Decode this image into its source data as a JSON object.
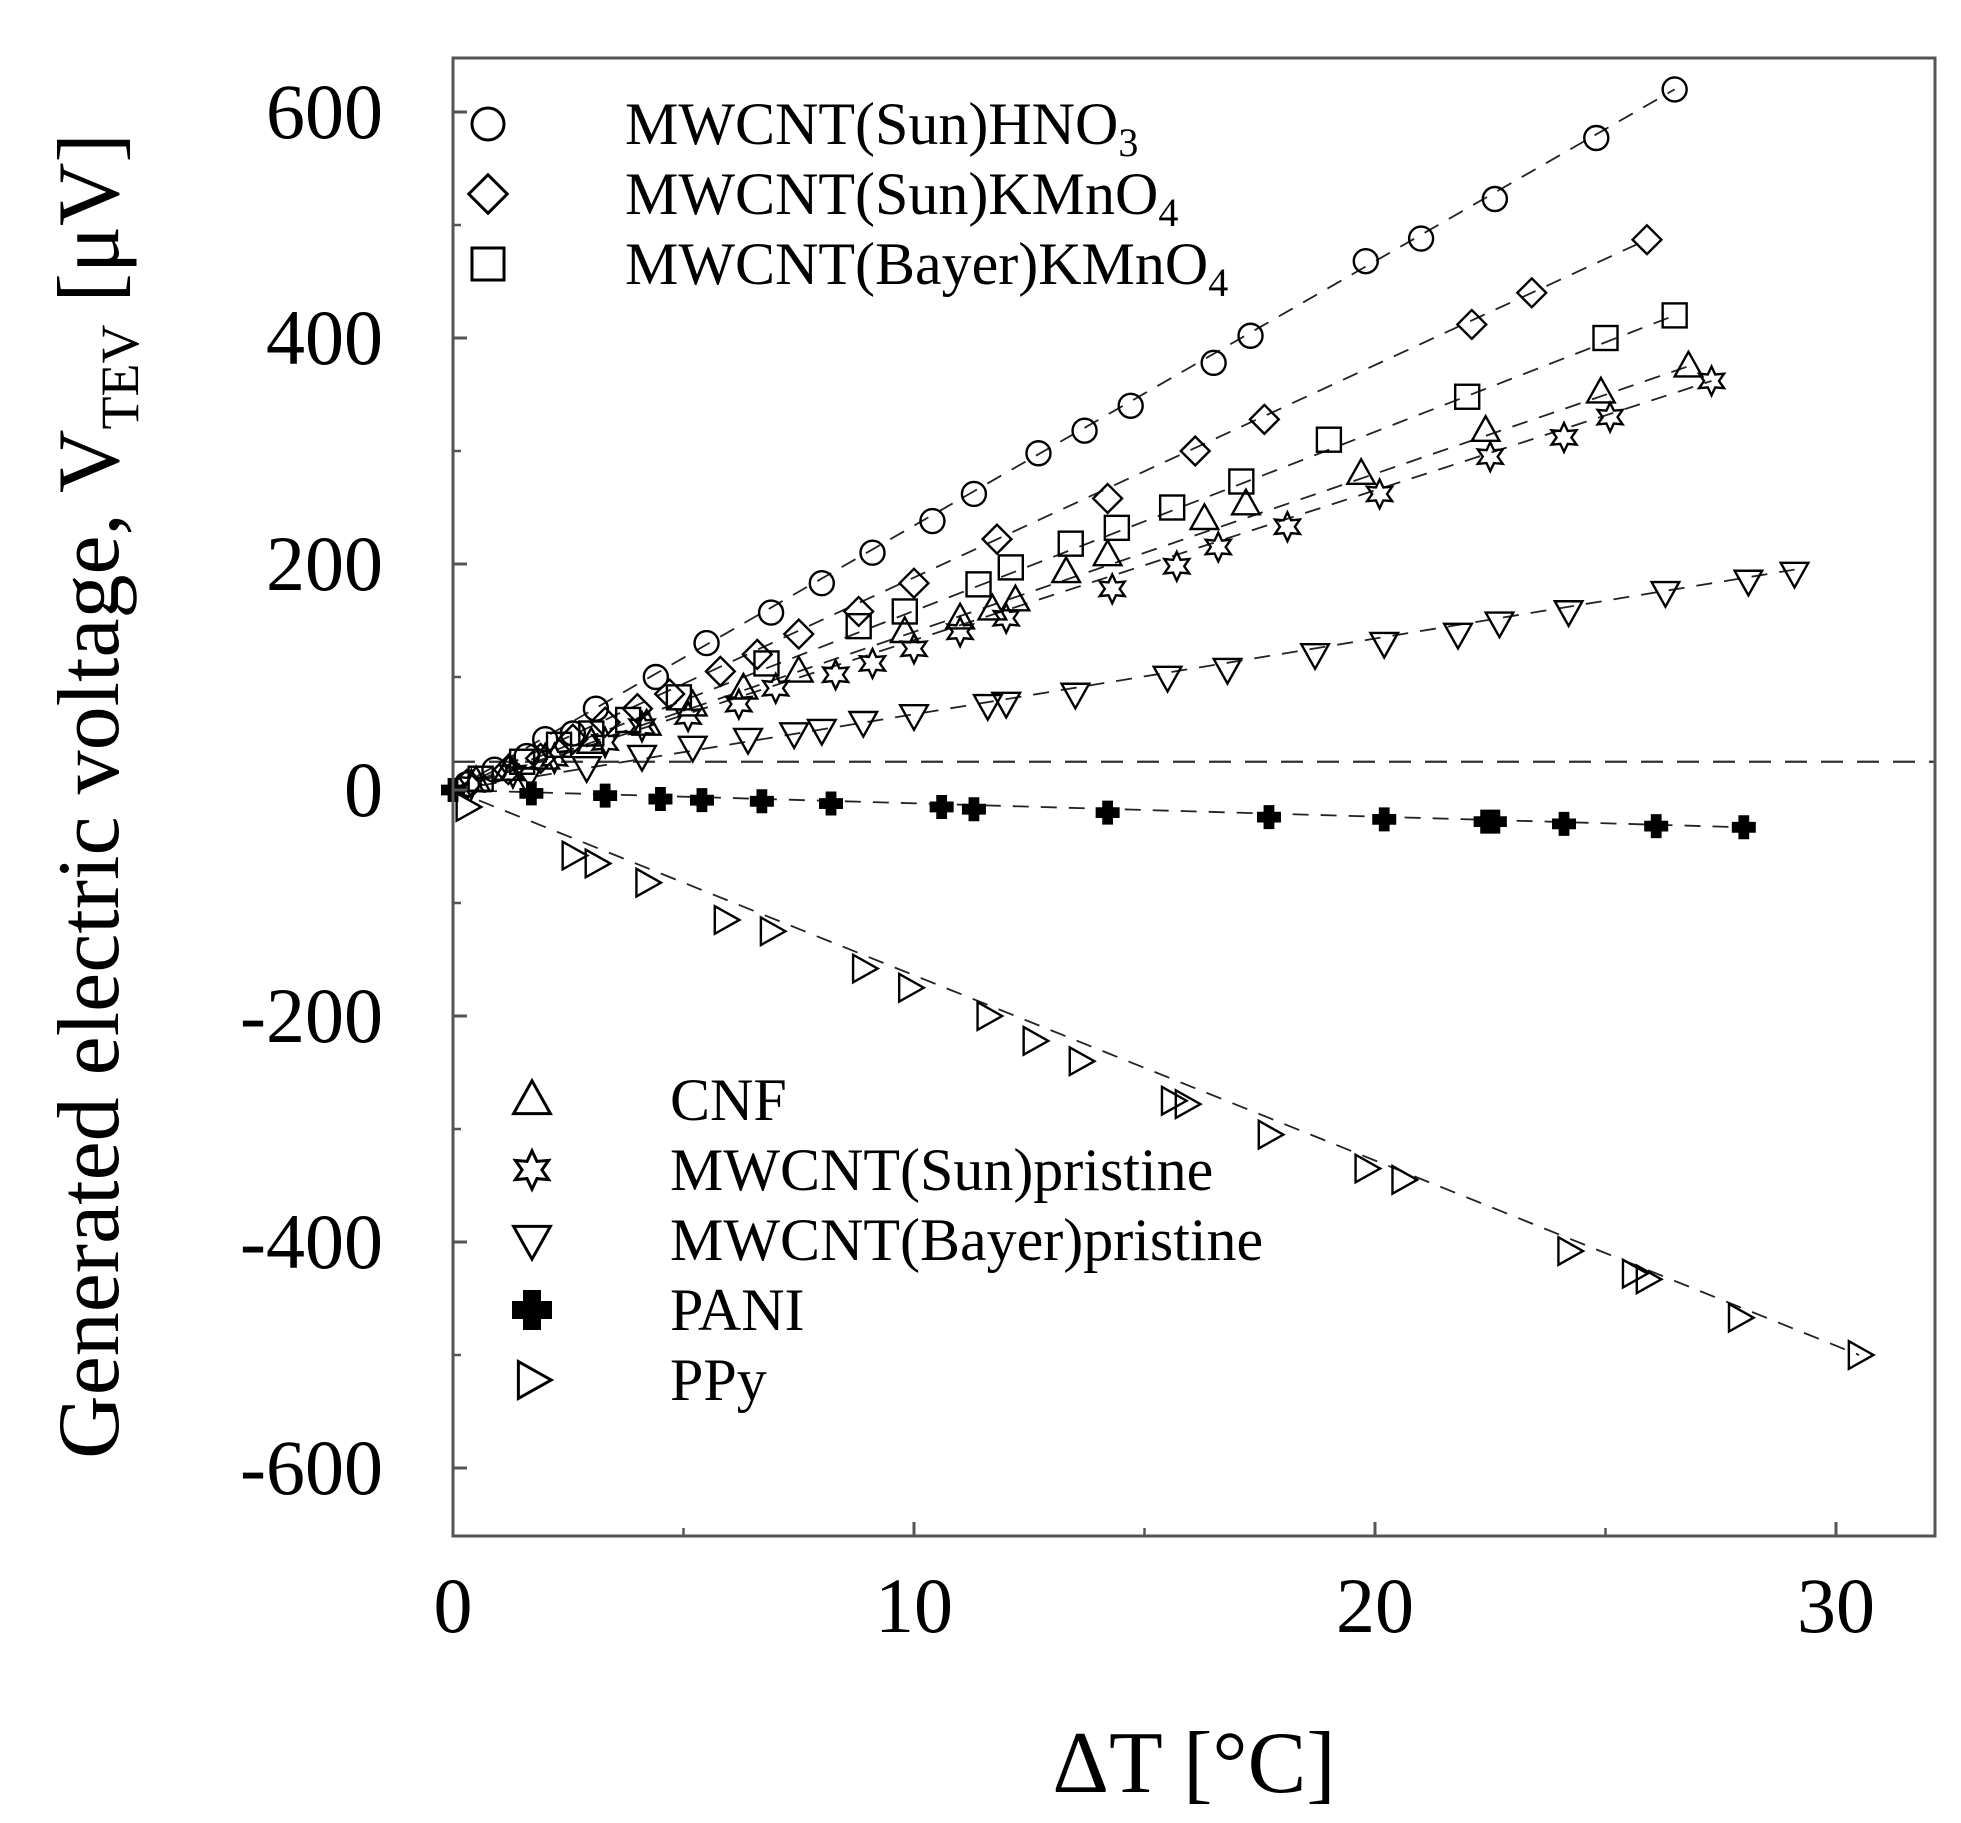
{
  "chart_data": {
    "type": "scatter",
    "xlabel": "ΔT [°C]",
    "ylabel": "Generated electric voltage, V",
    "ylabel_sub": "TEV",
    "ylabel_unit": " [μV]",
    "xlim": [
      0,
      32
    ],
    "ylim": [
      -650,
      640
    ],
    "xticks": [
      0,
      10,
      20,
      30
    ],
    "yticks": [
      600,
      400,
      200,
      0,
      -200,
      -400,
      -600
    ],
    "grid": false,
    "legend": [
      {
        "placement": "top-left",
        "entries": [
          0,
          1,
          2
        ]
      },
      {
        "placement": "bottom-left",
        "entries": [
          3,
          4,
          5,
          6,
          7
        ]
      }
    ],
    "reference_line": {
      "y": 25,
      "style": "dashed"
    },
    "series": [
      {
        "name": "MWCNT(Sun)HNO",
        "name_sub": "3",
        "marker": "circle",
        "fit": {
          "x0": 0,
          "y0": 0,
          "x1": 26.5,
          "y1": 620
        },
        "points": [
          [
            0.3,
            5
          ],
          [
            0.9,
            18
          ],
          [
            1.6,
            30
          ],
          [
            2.0,
            45
          ],
          [
            2.6,
            50
          ],
          [
            3.1,
            72
          ],
          [
            4.4,
            100
          ],
          [
            5.5,
            130
          ],
          [
            6.9,
            157
          ],
          [
            8.0,
            183
          ],
          [
            9.1,
            210
          ],
          [
            10.4,
            238
          ],
          [
            11.3,
            262
          ],
          [
            12.7,
            298
          ],
          [
            13.7,
            318
          ],
          [
            14.7,
            340
          ],
          [
            16.5,
            378
          ],
          [
            17.3,
            402
          ],
          [
            19.8,
            468
          ],
          [
            21.0,
            488
          ],
          [
            22.6,
            523
          ],
          [
            24.8,
            577
          ],
          [
            26.5,
            620
          ]
        ]
      },
      {
        "name": "MWCNT(Sun)KMnO",
        "name_sub": "4",
        "marker": "diamond",
        "fit": {
          "x0": 0,
          "y0": 0,
          "x1": 25.9,
          "y1": 487
        },
        "points": [
          [
            0.3,
            5
          ],
          [
            1.2,
            18
          ],
          [
            1.9,
            28
          ],
          [
            2.6,
            45
          ],
          [
            3.3,
            60
          ],
          [
            4.0,
            72
          ],
          [
            4.7,
            85
          ],
          [
            5.8,
            105
          ],
          [
            6.6,
            120
          ],
          [
            7.5,
            138
          ],
          [
            8.8,
            158
          ],
          [
            10.0,
            183
          ],
          [
            11.8,
            222
          ],
          [
            14.2,
            258
          ],
          [
            16.1,
            300
          ],
          [
            17.6,
            328
          ],
          [
            22.1,
            412
          ],
          [
            23.4,
            440
          ],
          [
            25.9,
            487
          ]
        ]
      },
      {
        "name": "MWCNT(Bayer)KMnO",
        "name_sub": "4",
        "marker": "square",
        "fit": {
          "x0": 0,
          "y0": 0,
          "x1": 26.5,
          "y1": 420
        },
        "points": [
          [
            0.6,
            10
          ],
          [
            1.5,
            25
          ],
          [
            2.3,
            40
          ],
          [
            3.0,
            50
          ],
          [
            3.8,
            62
          ],
          [
            4.9,
            82
          ],
          [
            6.8,
            112
          ],
          [
            8.8,
            145
          ],
          [
            9.8,
            158
          ],
          [
            11.4,
            182
          ],
          [
            12.1,
            197
          ],
          [
            13.4,
            218
          ],
          [
            14.4,
            232
          ],
          [
            15.6,
            250
          ],
          [
            17.1,
            273
          ],
          [
            19.0,
            310
          ],
          [
            22.0,
            348
          ],
          [
            25.0,
            400
          ],
          [
            26.5,
            420
          ]
        ]
      },
      {
        "name": "CNF",
        "marker": "triangle-up",
        "fit": {
          "x0": 0,
          "y0": 0,
          "x1": 26.8,
          "y1": 375
        },
        "points": [
          [
            0.5,
            8
          ],
          [
            1.2,
            18
          ],
          [
            2.0,
            28
          ],
          [
            3.0,
            42
          ],
          [
            4.2,
            58
          ],
          [
            5.2,
            75
          ],
          [
            6.3,
            90
          ],
          [
            7.5,
            105
          ],
          [
            9.8,
            140
          ],
          [
            11.0,
            152
          ],
          [
            11.7,
            160
          ],
          [
            12.2,
            168
          ],
          [
            13.3,
            193
          ],
          [
            14.2,
            208
          ],
          [
            16.3,
            240
          ],
          [
            17.2,
            253
          ],
          [
            19.7,
            280
          ],
          [
            22.4,
            318
          ],
          [
            24.9,
            352
          ],
          [
            26.8,
            375
          ]
        ]
      },
      {
        "name": "MWCNT(Sun)pristine",
        "marker": "star6",
        "fit": {
          "x0": 0,
          "y0": 0,
          "x1": 27.3,
          "y1": 362
        },
        "points": [
          [
            0.4,
            5
          ],
          [
            1.3,
            15
          ],
          [
            2.2,
            28
          ],
          [
            3.3,
            42
          ],
          [
            4.1,
            56
          ],
          [
            5.1,
            65
          ],
          [
            6.2,
            76
          ],
          [
            7.0,
            90
          ],
          [
            8.3,
            102
          ],
          [
            9.1,
            112
          ],
          [
            10.0,
            125
          ],
          [
            11.0,
            140
          ],
          [
            12.0,
            152
          ],
          [
            14.3,
            178
          ],
          [
            15.7,
            198
          ],
          [
            16.6,
            215
          ],
          [
            18.1,
            233
          ],
          [
            20.1,
            262
          ],
          [
            22.5,
            295
          ],
          [
            24.1,
            312
          ],
          [
            25.1,
            330
          ],
          [
            27.3,
            362
          ]
        ]
      },
      {
        "name": "MWCNT(Bayer)pristine",
        "marker": "triangle-down",
        "fit": {
          "x0": 0,
          "y0": 0,
          "x1": 29.1,
          "y1": 195
        },
        "points": [
          [
            1.6,
            10
          ],
          [
            2.9,
            20
          ],
          [
            4.1,
            30
          ],
          [
            5.2,
            38
          ],
          [
            6.4,
            45
          ],
          [
            7.4,
            50
          ],
          [
            8.0,
            53
          ],
          [
            8.9,
            60
          ],
          [
            10.0,
            66
          ],
          [
            11.6,
            75
          ],
          [
            12.0,
            77
          ],
          [
            13.5,
            85
          ],
          [
            15.5,
            100
          ],
          [
            16.8,
            107
          ],
          [
            18.7,
            120
          ],
          [
            20.2,
            130
          ],
          [
            21.8,
            138
          ],
          [
            22.7,
            148
          ],
          [
            24.2,
            158
          ],
          [
            26.3,
            175
          ],
          [
            28.1,
            185
          ],
          [
            29.1,
            192
          ]
        ]
      },
      {
        "name": "PANI",
        "marker": "plus",
        "fit": {
          "x0": 0,
          "y0": 0,
          "x1": 28.0,
          "y1": -33
        },
        "points": [
          [
            0.0,
            0
          ],
          [
            1.7,
            -3
          ],
          [
            3.3,
            -5
          ],
          [
            4.5,
            -8
          ],
          [
            5.4,
            -9
          ],
          [
            6.7,
            -10
          ],
          [
            8.2,
            -12
          ],
          [
            10.6,
            -15
          ],
          [
            11.3,
            -17
          ],
          [
            14.2,
            -20
          ],
          [
            17.7,
            -24
          ],
          [
            20.2,
            -26
          ],
          [
            22.4,
            -28
          ],
          [
            22.6,
            -28
          ],
          [
            24.1,
            -30
          ],
          [
            26.1,
            -32
          ],
          [
            28.0,
            -33
          ]
        ]
      },
      {
        "name": "PPy",
        "marker": "triangle-right",
        "fit": {
          "x0": 0,
          "y0": 0,
          "x1": 30.5,
          "y1": -500
        },
        "points": [
          [
            0.3,
            -15
          ],
          [
            2.6,
            -58
          ],
          [
            3.1,
            -65
          ],
          [
            4.2,
            -82
          ],
          [
            5.9,
            -115
          ],
          [
            6.9,
            -125
          ],
          [
            8.9,
            -158
          ],
          [
            9.9,
            -175
          ],
          [
            11.6,
            -200
          ],
          [
            12.6,
            -222
          ],
          [
            13.6,
            -240
          ],
          [
            15.6,
            -275
          ],
          [
            15.9,
            -278
          ],
          [
            17.7,
            -305
          ],
          [
            19.8,
            -335
          ],
          [
            20.6,
            -345
          ],
          [
            24.2,
            -408
          ],
          [
            25.6,
            -428
          ],
          [
            25.9,
            -433
          ],
          [
            27.9,
            -467
          ],
          [
            30.5,
            -500
          ]
        ]
      }
    ]
  }
}
